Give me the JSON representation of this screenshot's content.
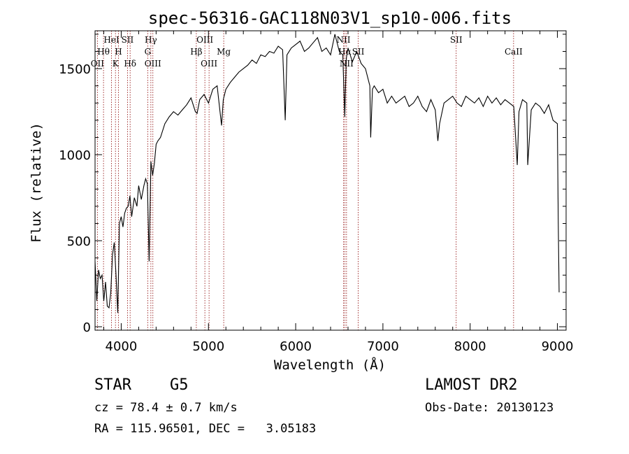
{
  "chart_data": {
    "type": "line",
    "title": "spec-56316-GAC118N03V1_sp10-006.fits",
    "xlabel": "Wavelength (Å)",
    "ylabel": "Flux (relative)",
    "xlim": [
      3700,
      9100
    ],
    "ylim": [
      -20,
      1720
    ],
    "xticks": [
      4000,
      5000,
      6000,
      7000,
      8000,
      9000
    ],
    "yticks": [
      0,
      500,
      1000,
      1500
    ],
    "grid": false,
    "line_color": "#000000",
    "marker_color": "#8b0000",
    "spectrum": {
      "x": [
        3700,
        3720,
        3740,
        3760,
        3780,
        3800,
        3820,
        3840,
        3860,
        3880,
        3900,
        3920,
        3940,
        3960,
        3980,
        4000,
        4020,
        4040,
        4060,
        4080,
        4100,
        4120,
        4150,
        4180,
        4200,
        4230,
        4260,
        4280,
        4300,
        4320,
        4340,
        4360,
        4380,
        4400,
        4420,
        4450,
        4500,
        4550,
        4600,
        4650,
        4700,
        4750,
        4800,
        4850,
        4870,
        4900,
        4950,
        5000,
        5050,
        5100,
        5150,
        5170,
        5200,
        5250,
        5300,
        5350,
        5400,
        5450,
        5500,
        5550,
        5600,
        5650,
        5700,
        5750,
        5800,
        5850,
        5880,
        5900,
        5950,
        6000,
        6050,
        6100,
        6150,
        6200,
        6250,
        6300,
        6350,
        6400,
        6450,
        6500,
        6540,
        6563,
        6580,
        6600,
        6650,
        6700,
        6750,
        6800,
        6850,
        6860,
        6880,
        6900,
        6950,
        7000,
        7050,
        7100,
        7150,
        7200,
        7250,
        7300,
        7350,
        7400,
        7450,
        7500,
        7550,
        7600,
        7630,
        7650,
        7700,
        7750,
        7800,
        7850,
        7900,
        7950,
        8000,
        8050,
        8100,
        8150,
        8200,
        8250,
        8300,
        8350,
        8400,
        8450,
        8500,
        8540,
        8560,
        8600,
        8650,
        8660,
        8700,
        8750,
        8800,
        8850,
        8900,
        8950,
        9000,
        9010,
        9020
      ],
      "y": [
        380,
        150,
        330,
        280,
        300,
        150,
        260,
        120,
        110,
        200,
        420,
        490,
        300,
        80,
        600,
        640,
        580,
        660,
        690,
        700,
        760,
        640,
        750,
        700,
        820,
        740,
        820,
        860,
        830,
        380,
        960,
        880,
        950,
        1060,
        1080,
        1100,
        1180,
        1220,
        1250,
        1230,
        1260,
        1290,
        1330,
        1250,
        1240,
        1320,
        1350,
        1300,
        1380,
        1400,
        1170,
        1320,
        1380,
        1420,
        1450,
        1480,
        1500,
        1520,
        1550,
        1530,
        1580,
        1570,
        1600,
        1590,
        1630,
        1610,
        1200,
        1580,
        1620,
        1640,
        1660,
        1600,
        1620,
        1650,
        1680,
        1600,
        1620,
        1580,
        1700,
        1600,
        1580,
        1220,
        1560,
        1620,
        1540,
        1600,
        1530,
        1500,
        1400,
        1100,
        1380,
        1400,
        1360,
        1380,
        1300,
        1340,
        1300,
        1320,
        1340,
        1280,
        1300,
        1340,
        1280,
        1250,
        1320,
        1260,
        1080,
        1180,
        1300,
        1320,
        1340,
        1300,
        1280,
        1340,
        1320,
        1300,
        1330,
        1280,
        1340,
        1300,
        1330,
        1290,
        1320,
        1300,
        1280,
        940,
        1250,
        1320,
        1300,
        940,
        1260,
        1300,
        1280,
        1240,
        1290,
        1200,
        1180,
        600,
        200
      ]
    },
    "line_markers": [
      {
        "label": "OII",
        "x": 3727,
        "row": 3
      },
      {
        "label": "Hθ",
        "x": 3797,
        "row": 2
      },
      {
        "label": "HeI",
        "x": 3889,
        "row": 1
      },
      {
        "label": "K",
        "x": 3934,
        "row": 3
      },
      {
        "label": "H",
        "x": 3968,
        "row": 2
      },
      {
        "label": "SII",
        "x": 4072,
        "row": 1
      },
      {
        "label": "Hδ",
        "x": 4102,
        "row": 3
      },
      {
        "label": "Hγ",
        "x": 4340,
        "row": 1
      },
      {
        "label": "G",
        "x": 4304,
        "row": 2
      },
      {
        "label": "OIII",
        "x": 4363,
        "row": 3
      },
      {
        "label": "Hβ",
        "x": 4861,
        "row": 2
      },
      {
        "label": "OIII",
        "x": 4959,
        "row": 1
      },
      {
        "label": "OIII",
        "x": 5007,
        "row": 3
      },
      {
        "label": "Mg",
        "x": 5175,
        "row": 2
      },
      {
        "label": "NII",
        "x": 6548,
        "row": 1
      },
      {
        "label": "Hα",
        "x": 6563,
        "row": 2
      },
      {
        "label": "NII",
        "x": 6583,
        "row": 3
      },
      {
        "label": "SII",
        "x": 6717,
        "row": 2
      },
      {
        "label": "SII",
        "x": 7840,
        "row": 1
      },
      {
        "label": "CaII",
        "x": 8498,
        "row": 2
      }
    ]
  },
  "info": {
    "object_class": "STAR",
    "subclass": "G5",
    "survey": "LAMOST DR2",
    "redshift": "cz = 78.4 ± 0.7 km/s",
    "obs_date": "Obs-Date: 20130123",
    "coords": "RA = 115.96501, DEC =   3.05183"
  }
}
